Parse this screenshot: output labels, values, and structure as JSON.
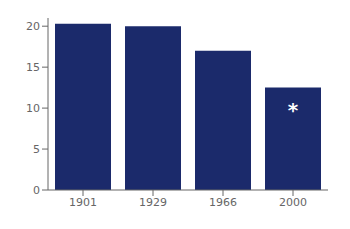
{
  "chart_data": {
    "type": "bar",
    "categories": [
      "1901",
      "1929",
      "1966",
      "2000"
    ],
    "values": [
      20.3,
      20.0,
      17.0,
      12.5
    ],
    "color": "#1b2a6b",
    "ylim": [
      0,
      21
    ],
    "yticks": [
      0,
      5,
      10,
      15,
      20
    ],
    "grid": false,
    "annotations": [
      {
        "text": "*",
        "x": "2000",
        "y": 9.75,
        "color": "#ffffff"
      }
    ]
  }
}
